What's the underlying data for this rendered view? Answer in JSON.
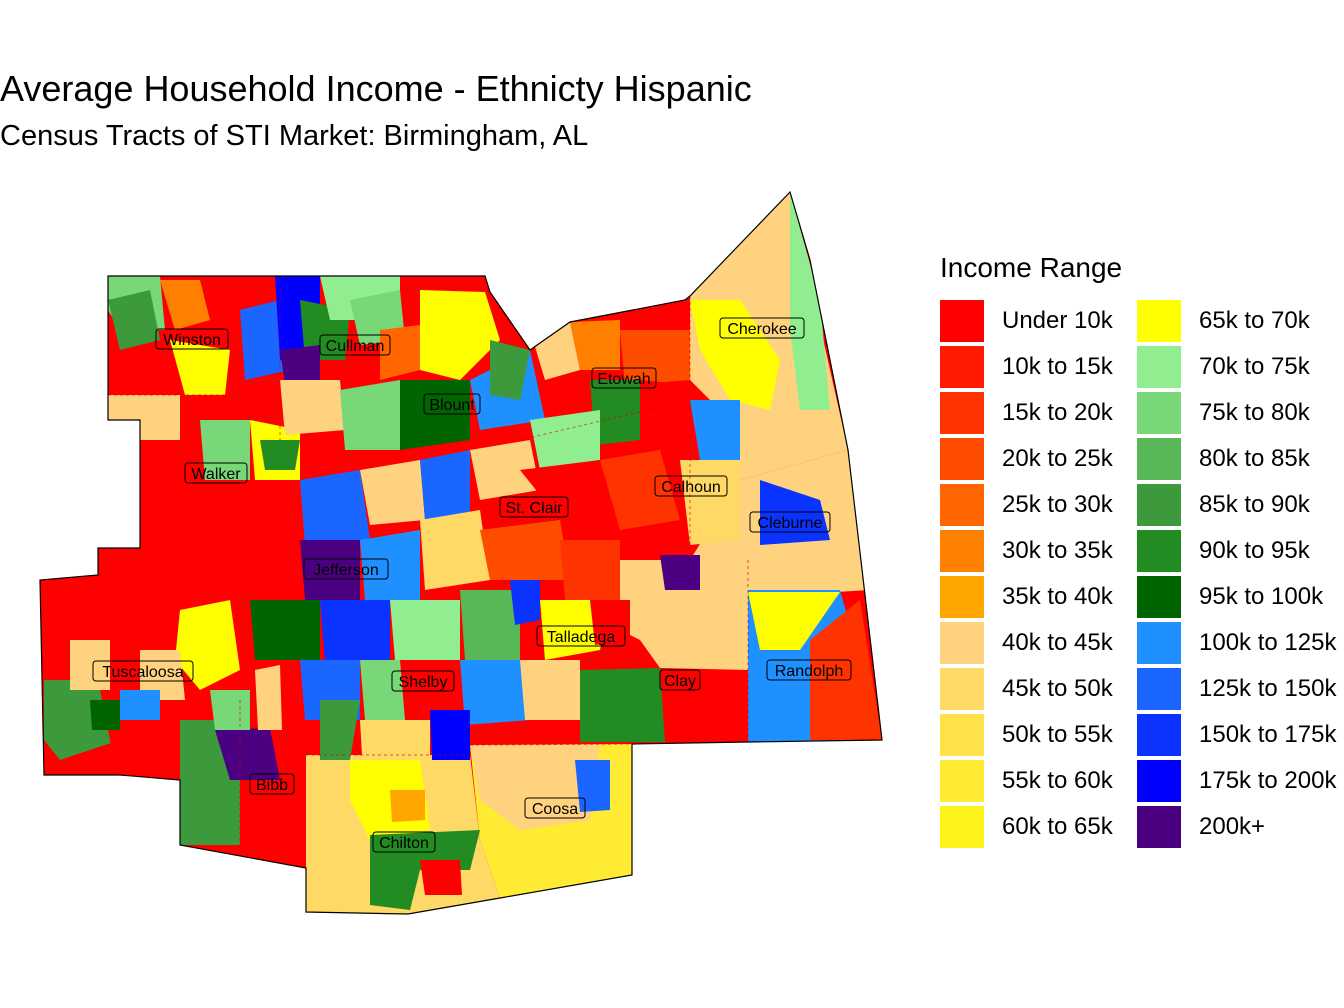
{
  "title": "Average Household Income - Ethnicty Hispanic",
  "subtitle": "Census Tracts of STI Market: Birmingham, AL",
  "legend": {
    "title": "Income Range",
    "items": [
      {
        "label": "Under 10k",
        "color": "#ff0000"
      },
      {
        "label": "10k to 15k",
        "color": "#ff1a00"
      },
      {
        "label": "15k to 20k",
        "color": "#ff3300"
      },
      {
        "label": "20k to 25k",
        "color": "#ff4d00"
      },
      {
        "label": "25k to 30k",
        "color": "#ff6600"
      },
      {
        "label": "30k to 35k",
        "color": "#ff8000"
      },
      {
        "label": "35k to 40k",
        "color": "#ffa500"
      },
      {
        "label": "40k to 45k",
        "color": "#ffd27f"
      },
      {
        "label": "45k to 50k",
        "color": "#ffd966"
      },
      {
        "label": "50k to 55k",
        "color": "#ffe24a"
      },
      {
        "label": "55k to 60k",
        "color": "#ffeb33"
      },
      {
        "label": "60k to 65k",
        "color": "#fff41a"
      },
      {
        "label": "65k to 70k",
        "color": "#ffff00"
      },
      {
        "label": "70k to 75k",
        "color": "#90ee90"
      },
      {
        "label": "75k to 80k",
        "color": "#78d878"
      },
      {
        "label": "80k to 85k",
        "color": "#58b858"
      },
      {
        "label": "85k to 90k",
        "color": "#3c9a3c"
      },
      {
        "label": "90k to 95k",
        "color": "#228b22"
      },
      {
        "label": "95k to 100k",
        "color": "#006400"
      },
      {
        "label": "100k to 125k",
        "color": "#1e90ff"
      },
      {
        "label": "125k to 150k",
        "color": "#1a66ff"
      },
      {
        "label": "150k to 175k",
        "color": "#0a33ff"
      },
      {
        "label": "175k to 200k",
        "color": "#0000ff"
      },
      {
        "label": "200k+",
        "color": "#4b0082"
      }
    ]
  },
  "counties": [
    {
      "name": "Winston"
    },
    {
      "name": "Cullman"
    },
    {
      "name": "Blount"
    },
    {
      "name": "Etowah"
    },
    {
      "name": "Cherokee"
    },
    {
      "name": "Walker"
    },
    {
      "name": "St. Clair"
    },
    {
      "name": "Calhoun"
    },
    {
      "name": "Cleburne"
    },
    {
      "name": "Jefferson"
    },
    {
      "name": "Talladega"
    },
    {
      "name": "Tuscaloosa"
    },
    {
      "name": "Shelby"
    },
    {
      "name": "Clay"
    },
    {
      "name": "Randolph"
    },
    {
      "name": "Bibb"
    },
    {
      "name": "Coosa"
    },
    {
      "name": "Chilton"
    }
  ]
}
